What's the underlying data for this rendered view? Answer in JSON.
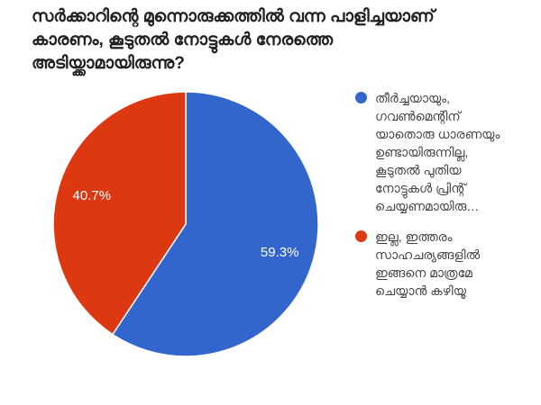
{
  "title": "സർക്കാറിന്റെ മുന്നൊരുക്കത്തിൽ വന്ന പാളിച്ചയാണ് കാരണം, കൂടുതൽ നോട്ടുകൾ നേരത്തെ അടിയ്ക്കാമായിരുന്നു?",
  "colors": {
    "background": "#ffffff",
    "title_text": "#212121",
    "legend_text": "#424242",
    "slice_label_text": "#ffffff"
  },
  "chart_data": {
    "type": "pie",
    "title": "സർക്കാറിന്റെ മുന്നൊരുക്കത്തിൽ വന്ന പാളിച്ചയാണ് കാരണം, കൂടുതൽ നോട്ടുകൾ നേരത്തെ അടിയ്ക്കാമായിരുന്നു?",
    "legend_position": "right",
    "start_angle": 0,
    "direction": "clockwise",
    "slices": [
      {
        "label": "തീർച്ചയായും, ഗവൺമെന്റിന് യാതൊരു ധാരണയും ഉണ്ടായിരുന്നില്ല, കൂടുതൽ പുതിയ നോട്ടുകൾ പ്രിന്റ് ചെയ്യണമായിരു…",
        "value": 59.3,
        "display": "59.3%",
        "color": "#3366cc"
      },
      {
        "label": "ഇല്ല, ഇത്തരം സാഹചര്യങ്ങളിൽ ഇങ്ങനെ മാത്രമേ ചെയ്യാൻ കഴിയൂ",
        "value": 40.7,
        "display": "40.7%",
        "color": "#dc3912"
      }
    ]
  }
}
